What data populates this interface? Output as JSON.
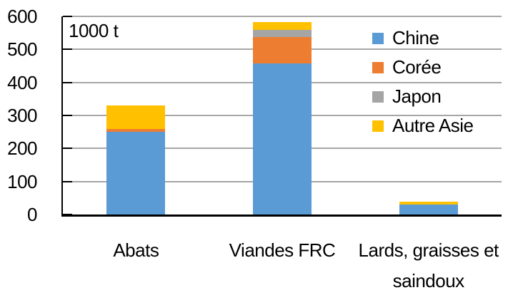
{
  "chart_data": {
    "type": "bar",
    "stacked": true,
    "unit_label": "1000 t",
    "categories": [
      "Abats",
      "Viandes FRC",
      "Lards, graisses et saindoux"
    ],
    "series": [
      {
        "name": "Chine",
        "color": "#5B9BD5",
        "values": [
          250,
          458,
          30
        ]
      },
      {
        "name": "Corée",
        "color": "#ED7D31",
        "values": [
          9,
          80,
          0
        ]
      },
      {
        "name": "Japon",
        "color": "#A5A5A5",
        "values": [
          0,
          20,
          0
        ]
      },
      {
        "name": "Autre Asie",
        "color": "#FFC000",
        "values": [
          72,
          25,
          9
        ]
      }
    ],
    "totals": [
      331,
      583,
      39
    ],
    "ylim": [
      0,
      600
    ],
    "yticks": [
      0,
      100,
      200,
      300,
      400,
      500,
      600
    ],
    "grid": true,
    "legend_position": "upper-right",
    "axis_color": "#000000",
    "gridline_color": "#A6A6A6"
  }
}
